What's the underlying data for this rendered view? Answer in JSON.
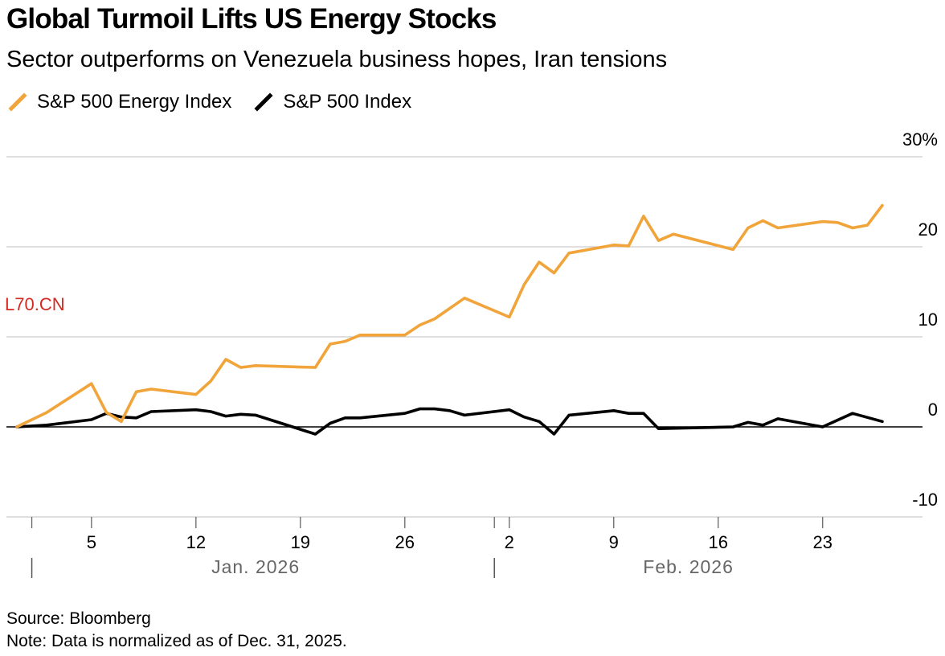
{
  "header": {
    "title": "Global Turmoil Lifts US Energy Stocks",
    "subtitle": "Sector outperforms on Venezuela business hopes, Iran tensions"
  },
  "watermark": {
    "text": "L70.CN",
    "color": "#d42a22"
  },
  "footer": {
    "source": "Source: Bloomberg",
    "note": "Note: Data is normalized as of Dec. 31, 2025."
  },
  "chart_data": {
    "type": "line",
    "title": "Global Turmoil Lifts US Energy Stocks",
    "subtitle": "Sector outperforms on Venezuela business hopes, Iran tensions",
    "xlabel": "",
    "ylabel": "",
    "y_unit": "%",
    "ylim": [
      -10,
      30
    ],
    "xlim": [
      "2026-01-01",
      "2026-02-27"
    ],
    "y_ticks": [
      {
        "value": 30,
        "label": "30%"
      },
      {
        "value": 20,
        "label": "20"
      },
      {
        "value": 10,
        "label": "10"
      },
      {
        "value": 0,
        "label": "0"
      },
      {
        "value": -10,
        "label": "-10"
      }
    ],
    "x_ticks": [
      {
        "date": "2026-01-01",
        "label": ""
      },
      {
        "date": "2026-01-05",
        "label": "5"
      },
      {
        "date": "2026-01-12",
        "label": "12"
      },
      {
        "date": "2026-01-19",
        "label": "19"
      },
      {
        "date": "2026-01-26",
        "label": "26"
      },
      {
        "date": "2026-02-01",
        "label": ""
      },
      {
        "date": "2026-02-02",
        "label": "2"
      },
      {
        "date": "2026-02-09",
        "label": "9"
      },
      {
        "date": "2026-02-16",
        "label": "16"
      },
      {
        "date": "2026-02-23",
        "label": "23"
      }
    ],
    "month_labels": [
      {
        "date": "2026-01-01",
        "center_date": "2026-01-16",
        "label": "Jan. 2026"
      },
      {
        "date": "2026-02-01",
        "center_date": "2026-02-14",
        "label": "Feb. 2026"
      }
    ],
    "grid": true,
    "legend_position": "top-left",
    "series": [
      {
        "name": "S&P 500 Energy Index",
        "color": "#f0a43a",
        "points": [
          {
            "date": "2025-12-31",
            "value": 0.0
          },
          {
            "date": "2026-01-02",
            "value": 1.6
          },
          {
            "date": "2026-01-05",
            "value": 4.8
          },
          {
            "date": "2026-01-06",
            "value": 1.6
          },
          {
            "date": "2026-01-07",
            "value": 0.6
          },
          {
            "date": "2026-01-08",
            "value": 3.9
          },
          {
            "date": "2026-01-09",
            "value": 4.2
          },
          {
            "date": "2026-01-12",
            "value": 3.6
          },
          {
            "date": "2026-01-13",
            "value": 5.1
          },
          {
            "date": "2026-01-14",
            "value": 7.5
          },
          {
            "date": "2026-01-15",
            "value": 6.6
          },
          {
            "date": "2026-01-16",
            "value": 6.8
          },
          {
            "date": "2026-01-20",
            "value": 6.6
          },
          {
            "date": "2026-01-21",
            "value": 9.2
          },
          {
            "date": "2026-01-22",
            "value": 9.5
          },
          {
            "date": "2026-01-23",
            "value": 10.2
          },
          {
            "date": "2026-01-26",
            "value": 10.2
          },
          {
            "date": "2026-01-27",
            "value": 11.3
          },
          {
            "date": "2026-01-28",
            "value": 12.0
          },
          {
            "date": "2026-01-30",
            "value": 14.3
          },
          {
            "date": "2026-02-02",
            "value": 12.2
          },
          {
            "date": "2026-02-03",
            "value": 15.8
          },
          {
            "date": "2026-02-04",
            "value": 18.3
          },
          {
            "date": "2026-02-05",
            "value": 17.1
          },
          {
            "date": "2026-02-06",
            "value": 19.3
          },
          {
            "date": "2026-02-09",
            "value": 20.2
          },
          {
            "date": "2026-02-10",
            "value": 20.1
          },
          {
            "date": "2026-02-11",
            "value": 23.4
          },
          {
            "date": "2026-02-12",
            "value": 20.7
          },
          {
            "date": "2026-02-13",
            "value": 21.4
          },
          {
            "date": "2026-02-17",
            "value": 19.7
          },
          {
            "date": "2026-02-18",
            "value": 22.1
          },
          {
            "date": "2026-02-19",
            "value": 22.9
          },
          {
            "date": "2026-02-20",
            "value": 22.1
          },
          {
            "date": "2026-02-23",
            "value": 22.8
          },
          {
            "date": "2026-02-24",
            "value": 22.7
          },
          {
            "date": "2026-02-25",
            "value": 22.1
          },
          {
            "date": "2026-02-26",
            "value": 22.4
          },
          {
            "date": "2026-02-27",
            "value": 24.6
          }
        ]
      },
      {
        "name": "S&P 500 Index",
        "color": "#000000",
        "points": [
          {
            "date": "2025-12-31",
            "value": 0.0
          },
          {
            "date": "2026-01-02",
            "value": 0.2
          },
          {
            "date": "2026-01-05",
            "value": 0.8
          },
          {
            "date": "2026-01-06",
            "value": 1.5
          },
          {
            "date": "2026-01-07",
            "value": 1.1
          },
          {
            "date": "2026-01-08",
            "value": 1.0
          },
          {
            "date": "2026-01-09",
            "value": 1.7
          },
          {
            "date": "2026-01-12",
            "value": 1.9
          },
          {
            "date": "2026-01-13",
            "value": 1.7
          },
          {
            "date": "2026-01-14",
            "value": 1.2
          },
          {
            "date": "2026-01-15",
            "value": 1.4
          },
          {
            "date": "2026-01-16",
            "value": 1.3
          },
          {
            "date": "2026-01-20",
            "value": -0.8
          },
          {
            "date": "2026-01-21",
            "value": 0.4
          },
          {
            "date": "2026-01-22",
            "value": 1.0
          },
          {
            "date": "2026-01-23",
            "value": 1.0
          },
          {
            "date": "2026-01-26",
            "value": 1.5
          },
          {
            "date": "2026-01-27",
            "value": 2.0
          },
          {
            "date": "2026-01-28",
            "value": 2.0
          },
          {
            "date": "2026-01-29",
            "value": 1.8
          },
          {
            "date": "2026-01-30",
            "value": 1.3
          },
          {
            "date": "2026-02-02",
            "value": 1.9
          },
          {
            "date": "2026-02-03",
            "value": 1.1
          },
          {
            "date": "2026-02-04",
            "value": 0.6
          },
          {
            "date": "2026-02-05",
            "value": -0.8
          },
          {
            "date": "2026-02-06",
            "value": 1.3
          },
          {
            "date": "2026-02-09",
            "value": 1.8
          },
          {
            "date": "2026-02-10",
            "value": 1.5
          },
          {
            "date": "2026-02-11",
            "value": 1.5
          },
          {
            "date": "2026-02-12",
            "value": -0.2
          },
          {
            "date": "2026-02-17",
            "value": 0.0
          },
          {
            "date": "2026-02-18",
            "value": 0.5
          },
          {
            "date": "2026-02-19",
            "value": 0.2
          },
          {
            "date": "2026-02-20",
            "value": 0.9
          },
          {
            "date": "2026-02-23",
            "value": 0.0
          },
          {
            "date": "2026-02-25",
            "value": 1.5
          },
          {
            "date": "2026-02-27",
            "value": 0.6
          }
        ]
      }
    ]
  }
}
